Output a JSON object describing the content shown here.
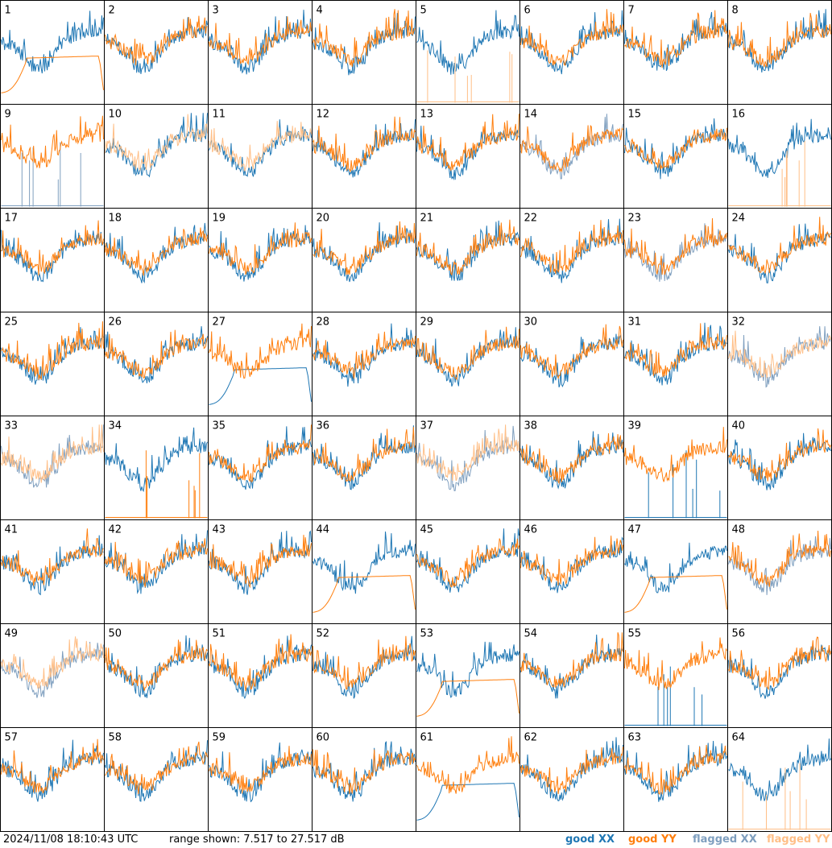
{
  "footer": {
    "timestamp": "2024/11/08 18:10:43 UTC",
    "range_text": "range shown: 7.517 to 27.517 dB",
    "legend": [
      {
        "key": "good_xx",
        "label": "good XX",
        "color": "#1f77b4"
      },
      {
        "key": "good_yy",
        "label": "good YY",
        "color": "#ff7f0e"
      },
      {
        "key": "flagged_xx",
        "label": "flagged XX",
        "color": "#7f9fbf"
      },
      {
        "key": "flagged_yy",
        "label": "flagged YY",
        "color": "#ffbf87"
      }
    ]
  },
  "chart_data": {
    "type": "line",
    "layout": "small-multiples 8x8",
    "ylim_db": [
      7.517,
      27.517
    ],
    "series_keys": [
      "good_xx",
      "good_yy",
      "flagged_xx",
      "flagged_yy"
    ],
    "panels": [
      {
        "label": "1",
        "xx": "good",
        "yy": "good",
        "note": "YY smooth bathtub"
      },
      {
        "label": "2",
        "xx": "good",
        "yy": "good"
      },
      {
        "label": "3",
        "xx": "good",
        "yy": "good"
      },
      {
        "label": "4",
        "xx": "good",
        "yy": "good"
      },
      {
        "label": "5",
        "xx": "good",
        "yy": "flagged",
        "note": "YY spikes"
      },
      {
        "label": "6",
        "xx": "good",
        "yy": "good"
      },
      {
        "label": "7",
        "xx": "good",
        "yy": "good"
      },
      {
        "label": "8",
        "xx": "good",
        "yy": "good"
      },
      {
        "label": "9",
        "xx": "flagged",
        "yy": "good",
        "note": "XX spikes"
      },
      {
        "label": "10",
        "xx": "good",
        "yy": "flagged"
      },
      {
        "label": "11",
        "xx": "good",
        "yy": "flagged"
      },
      {
        "label": "12",
        "xx": "good",
        "yy": "good"
      },
      {
        "label": "13",
        "xx": "good",
        "yy": "good"
      },
      {
        "label": "14",
        "xx": "flagged",
        "yy": "good"
      },
      {
        "label": "15",
        "xx": "good",
        "yy": "good"
      },
      {
        "label": "16",
        "xx": "good",
        "yy": "flagged",
        "note": "YY spikes"
      },
      {
        "label": "17",
        "xx": "good",
        "yy": "good"
      },
      {
        "label": "18",
        "xx": "good",
        "yy": "good"
      },
      {
        "label": "19",
        "xx": "good",
        "yy": "good"
      },
      {
        "label": "20",
        "xx": "good",
        "yy": "good"
      },
      {
        "label": "21",
        "xx": "good",
        "yy": "good"
      },
      {
        "label": "22",
        "xx": "good",
        "yy": "good"
      },
      {
        "label": "23",
        "xx": "flagged",
        "yy": "good"
      },
      {
        "label": "24",
        "xx": "good",
        "yy": "good"
      },
      {
        "label": "25",
        "xx": "good",
        "yy": "good",
        "note": "XX low"
      },
      {
        "label": "26",
        "xx": "good",
        "yy": "good"
      },
      {
        "label": "27",
        "xx": "good",
        "yy": "good",
        "note": "XX smooth bathtub"
      },
      {
        "label": "28",
        "xx": "good",
        "yy": "good"
      },
      {
        "label": "29",
        "xx": "good",
        "yy": "good"
      },
      {
        "label": "30",
        "xx": "good",
        "yy": "good"
      },
      {
        "label": "31",
        "xx": "good",
        "yy": "good"
      },
      {
        "label": "32",
        "xx": "flagged",
        "yy": "flagged"
      },
      {
        "label": "33",
        "xx": "flagged",
        "yy": "flagged"
      },
      {
        "label": "34",
        "xx": "good",
        "yy": "good",
        "note": "YY spikes"
      },
      {
        "label": "35",
        "xx": "good",
        "yy": "good"
      },
      {
        "label": "36",
        "xx": "good",
        "yy": "good"
      },
      {
        "label": "37",
        "xx": "flagged",
        "yy": "flagged"
      },
      {
        "label": "38",
        "xx": "good",
        "yy": "good"
      },
      {
        "label": "39",
        "xx": "good",
        "yy": "good",
        "note": "XX spikes"
      },
      {
        "label": "40",
        "xx": "good",
        "yy": "good"
      },
      {
        "label": "41",
        "xx": "good",
        "yy": "good"
      },
      {
        "label": "42",
        "xx": "good",
        "yy": "good"
      },
      {
        "label": "43",
        "xx": "good",
        "yy": "good"
      },
      {
        "label": "44",
        "xx": "good",
        "yy": "good",
        "note": "YY smooth bathtub"
      },
      {
        "label": "45",
        "xx": "good",
        "yy": "good"
      },
      {
        "label": "46",
        "xx": "good",
        "yy": "good"
      },
      {
        "label": "47",
        "xx": "good",
        "yy": "good",
        "note": "YY smooth bathtub"
      },
      {
        "label": "48",
        "xx": "flagged",
        "yy": "good"
      },
      {
        "label": "49",
        "xx": "flagged",
        "yy": "flagged"
      },
      {
        "label": "50",
        "xx": "good",
        "yy": "good"
      },
      {
        "label": "51",
        "xx": "good",
        "yy": "good"
      },
      {
        "label": "52",
        "xx": "good",
        "yy": "good"
      },
      {
        "label": "53",
        "xx": "good",
        "yy": "good",
        "note": "YY smooth bathtub"
      },
      {
        "label": "54",
        "xx": "good",
        "yy": "good"
      },
      {
        "label": "55",
        "xx": "good",
        "yy": "good",
        "note": "XX spikes"
      },
      {
        "label": "56",
        "xx": "good",
        "yy": "good"
      },
      {
        "label": "57",
        "xx": "good",
        "yy": "good"
      },
      {
        "label": "58",
        "xx": "good",
        "yy": "good"
      },
      {
        "label": "59",
        "xx": "good",
        "yy": "good"
      },
      {
        "label": "60",
        "xx": "good",
        "yy": "good"
      },
      {
        "label": "61",
        "xx": "good",
        "yy": "good",
        "note": "XX smooth bathtub"
      },
      {
        "label": "62",
        "xx": "good",
        "yy": "good"
      },
      {
        "label": "63",
        "xx": "good",
        "yy": "good"
      },
      {
        "label": "64",
        "xx": "good",
        "yy": "flagged",
        "note": "YY spikes"
      }
    ]
  }
}
